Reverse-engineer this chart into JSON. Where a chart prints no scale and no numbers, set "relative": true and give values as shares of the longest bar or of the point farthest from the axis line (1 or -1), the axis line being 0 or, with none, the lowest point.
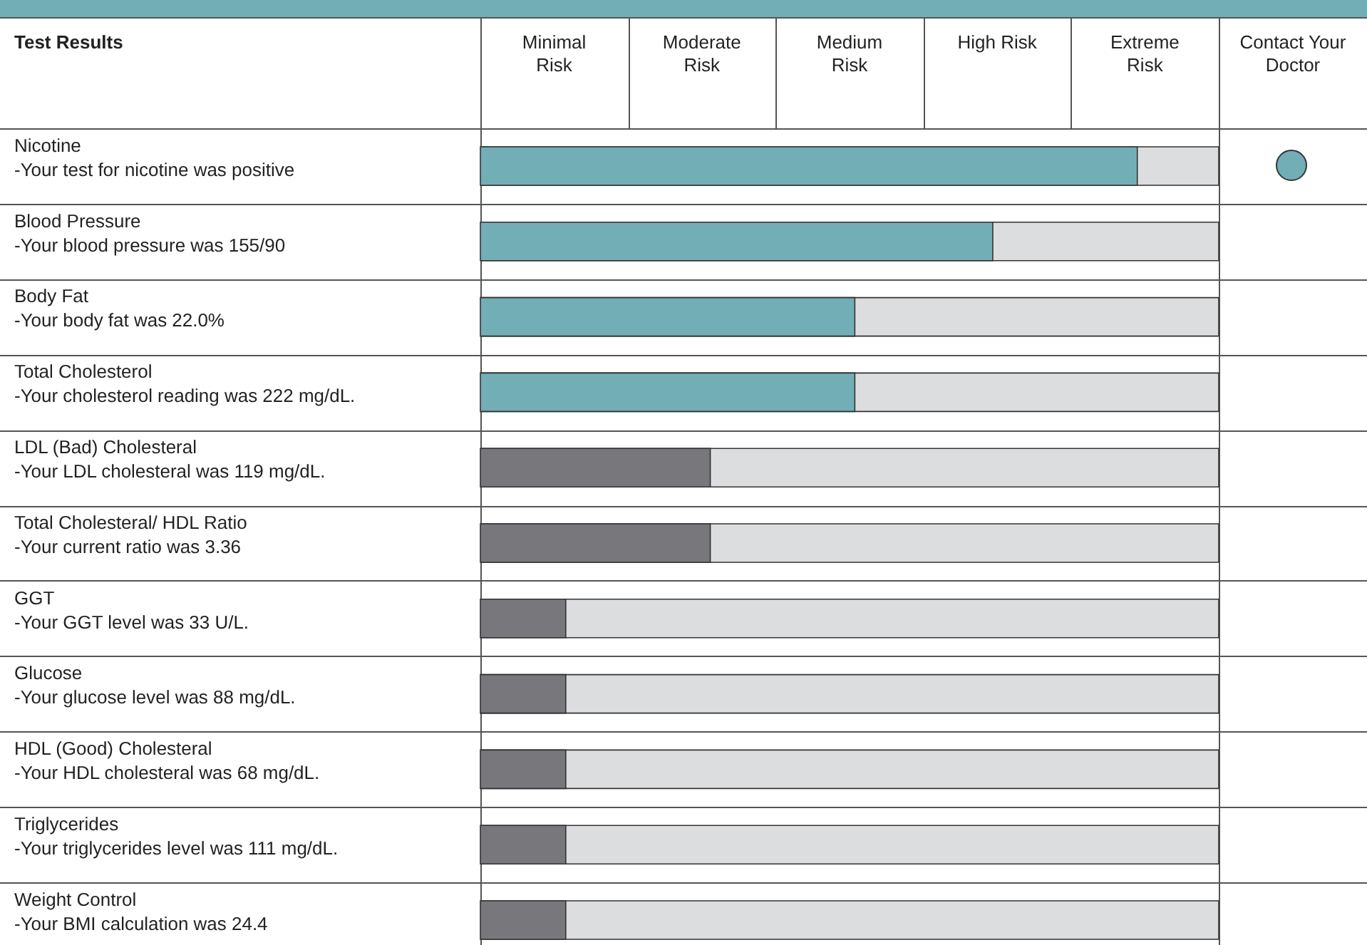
{
  "chart_data": {
    "type": "bar",
    "orientation": "horizontal",
    "relative": true,
    "categories": [
      "Nicotine\n-Your test for nicotine was positive",
      "Blood Pressure\n-Your blood pressure was 155/90",
      "Body Fat\n-Your body fat was 22.0%",
      "Total Cholesterol\n-Your cholesterol reading was 222 mg/dL.",
      "LDL (Bad) Cholesteral\n-Your LDL cholesteral was 119 mg/dL.",
      "Total Cholesteral/ HDL Ratio\n-Your current ratio was 3.36",
      "GGT\n-Your GGT level was 33 U/L.",
      "Glucose\n-Your glucose level was 88 mg/dL.",
      "HDL (Good) Cholesteral\n-Your HDL cholesteral was 68 mg/dL.",
      "Triglycerides\n-Your triglycerides level was 111 mg/dL.",
      "Weight Control\n-Your BMI calculation was 24.4"
    ],
    "values": [
      1,
      0.78,
      0.57,
      0.57,
      0.35,
      0.35,
      0.13,
      0.13,
      0.13,
      0.13,
      0.13
    ],
    "colors": [
      "#72aeb5",
      "#72aeb5",
      "#72aeb5",
      "#72aeb5",
      "#78787c",
      "#78787c",
      "#78787c",
      "#78787c",
      "#78787c",
      "#78787c",
      "#78787c"
    ],
    "annotations": [
      "Test Results",
      "Minimal Risk",
      "Moderate Risk",
      "Medium Risk",
      "High Risk",
      "Extreme Risk",
      "Contact Your Doctor"
    ]
  }
}
